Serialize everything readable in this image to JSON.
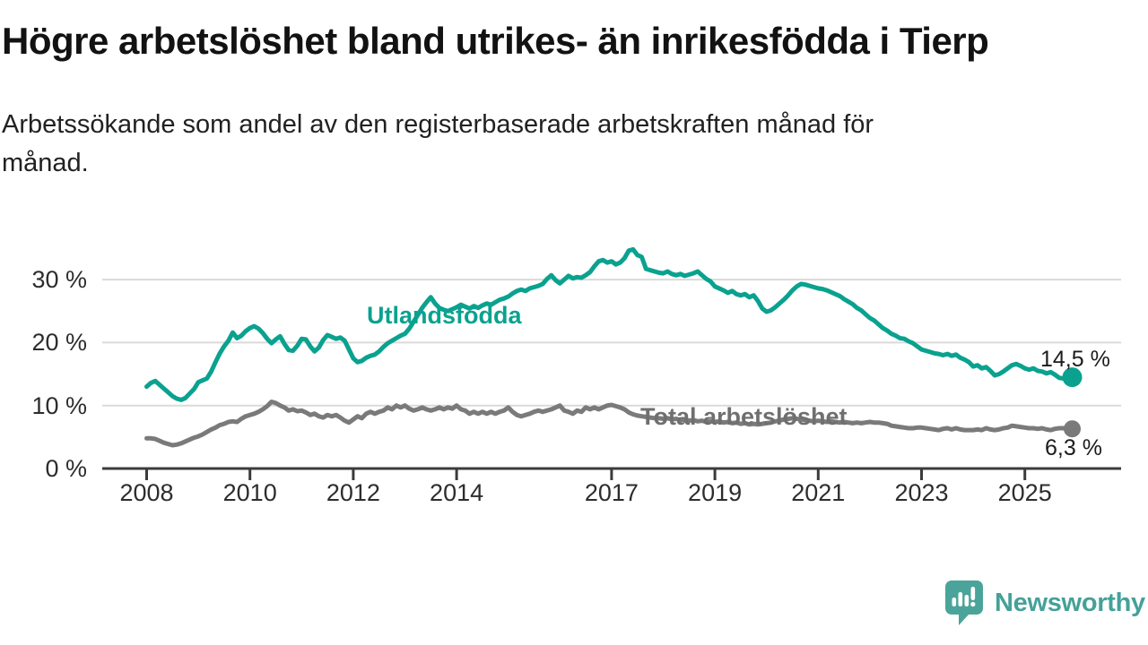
{
  "title": "Högre arbetslöshet bland utrikes- än inrikesfödda i Tierp",
  "subtitle": {
    "line1": "Arbetssökande som andel av den registerbaserade arbetskraften månad för",
    "line2": "månad."
  },
  "branding": {
    "name": "Newsworthy",
    "icon": "newsworthy-speech-bubble-chart-icon",
    "color": "#45a198"
  },
  "colors": {
    "foreign_born_line": "#0aa28f",
    "total_line": "#7a7a7a",
    "total_label": "#6f6f6f",
    "axis": "#3b3b3b",
    "gridline": "#dadada",
    "tick_text": "#2d2d2d"
  },
  "chart_data": {
    "type": "line",
    "x_start_year": 2008,
    "x_step_months": 1,
    "x_ticks": [
      2008,
      2010,
      2012,
      2014,
      2017,
      2019,
      2021,
      2023,
      2025
    ],
    "y_ticks": [
      {
        "value": 0,
        "label": "0 %"
      },
      {
        "value": 10,
        "label": "10 %"
      },
      {
        "value": 20,
        "label": "20 %"
      },
      {
        "value": 30,
        "label": "30 %"
      }
    ],
    "ylim": [
      0,
      36
    ],
    "grid": true,
    "series": [
      {
        "name": "Utlandsfödda",
        "color": "#0aa28f",
        "end_label": "14,5 %",
        "end_value": 14.5,
        "values": [
          13.0,
          13.6,
          13.9,
          13.3,
          12.7,
          12.1,
          11.5,
          11.1,
          10.9,
          11.2,
          11.9,
          12.6,
          13.7,
          14.0,
          14.3,
          15.4,
          16.9,
          18.3,
          19.4,
          20.3,
          21.6,
          20.7,
          21.1,
          21.8,
          22.3,
          22.6,
          22.2,
          21.5,
          20.6,
          19.9,
          20.5,
          21.0,
          19.8,
          18.8,
          18.7,
          19.5,
          20.6,
          20.5,
          19.4,
          18.6,
          19.2,
          20.4,
          21.2,
          20.9,
          20.6,
          20.8,
          20.3,
          18.9,
          17.5,
          16.9,
          17.1,
          17.6,
          17.9,
          18.1,
          18.6,
          19.3,
          19.9,
          20.3,
          20.7,
          21.1,
          21.4,
          22.2,
          23.3,
          24.4,
          25.5,
          26.4,
          27.2,
          26.2,
          25.5,
          25.2,
          25.0,
          25.3,
          25.6,
          26.0,
          25.7,
          25.4,
          25.8,
          25.5,
          25.9,
          26.2,
          26.0,
          26.4,
          26.8,
          27.0,
          27.3,
          27.8,
          28.2,
          28.4,
          28.2,
          28.6,
          28.8,
          29.0,
          29.3,
          30.1,
          30.7,
          29.9,
          29.4,
          30.0,
          30.6,
          30.2,
          30.4,
          30.3,
          30.7,
          31.2,
          32.1,
          32.9,
          33.1,
          32.7,
          32.9,
          32.4,
          32.7,
          33.4,
          34.6,
          34.8,
          33.9,
          33.6,
          31.7,
          31.5,
          31.3,
          31.1,
          31.0,
          31.3,
          30.9,
          30.7,
          30.9,
          30.6,
          30.8,
          31.0,
          31.3,
          30.7,
          30.1,
          29.7,
          28.9,
          28.6,
          28.3,
          27.9,
          28.2,
          27.7,
          27.5,
          27.7,
          27.2,
          27.5,
          26.6,
          25.4,
          24.9,
          25.1,
          25.6,
          26.2,
          26.8,
          27.5,
          28.3,
          28.9,
          29.3,
          29.2,
          29.0,
          28.8,
          28.6,
          28.5,
          28.3,
          28.0,
          27.7,
          27.4,
          26.9,
          26.5,
          26.1,
          25.5,
          25.1,
          24.5,
          23.9,
          23.5,
          22.9,
          22.3,
          21.9,
          21.4,
          21.1,
          20.7,
          20.6,
          20.2,
          19.9,
          19.4,
          18.9,
          18.7,
          18.5,
          18.3,
          18.2,
          18.0,
          18.2,
          17.9,
          18.1,
          17.6,
          17.3,
          16.9,
          16.2,
          16.4,
          15.9,
          16.1,
          15.5,
          14.8,
          15.0,
          15.4,
          15.9,
          16.4,
          16.6,
          16.3,
          15.9,
          15.7,
          15.9,
          15.5,
          15.4,
          15.1,
          15.3,
          14.9,
          14.4,
          14.3,
          14.3,
          14.5
        ]
      },
      {
        "name": "Total arbetslöshet",
        "color": "#7a7a7a",
        "end_label": "6,3 %",
        "end_value": 6.3,
        "values": [
          4.8,
          4.8,
          4.7,
          4.4,
          4.1,
          3.9,
          3.7,
          3.8,
          4.0,
          4.3,
          4.6,
          4.9,
          5.1,
          5.4,
          5.8,
          6.2,
          6.5,
          6.9,
          7.1,
          7.4,
          7.5,
          7.4,
          7.9,
          8.3,
          8.5,
          8.7,
          9.0,
          9.4,
          9.9,
          10.6,
          10.4,
          10.0,
          9.7,
          9.2,
          9.4,
          9.1,
          9.2,
          8.9,
          8.5,
          8.7,
          8.3,
          8.1,
          8.5,
          8.3,
          8.5,
          8.1,
          7.6,
          7.3,
          7.8,
          8.3,
          8.0,
          8.7,
          9.0,
          8.7,
          9.0,
          9.2,
          9.7,
          9.4,
          10.0,
          9.7,
          10.0,
          9.5,
          9.2,
          9.4,
          9.7,
          9.4,
          9.2,
          9.4,
          9.7,
          9.4,
          9.7,
          9.5,
          10.0,
          9.4,
          9.2,
          8.7,
          9.0,
          8.7,
          9.0,
          8.7,
          9.0,
          8.7,
          9.0,
          9.2,
          9.7,
          9.0,
          8.5,
          8.3,
          8.5,
          8.7,
          9.0,
          9.2,
          9.0,
          9.2,
          9.4,
          9.7,
          10.0,
          9.2,
          9.0,
          8.7,
          9.2,
          9.0,
          9.7,
          9.4,
          9.7,
          9.4,
          9.7,
          10.0,
          10.1,
          9.9,
          9.7,
          9.4,
          8.9,
          8.6,
          8.4,
          8.3,
          8.2,
          8.1,
          8.0,
          8.0,
          7.9,
          8.0,
          7.8,
          7.9,
          7.7,
          7.8,
          7.6,
          7.7,
          7.5,
          7.6,
          7.4,
          7.5,
          7.4,
          7.5,
          7.3,
          7.4,
          7.2,
          7.3,
          7.1,
          7.2,
          7.0,
          7.1,
          7.0,
          7.1,
          7.2,
          7.3,
          7.5,
          7.6,
          7.8,
          7.9,
          8.0,
          7.9,
          7.8,
          7.7,
          7.6,
          7.5,
          7.6,
          7.5,
          7.4,
          7.5,
          7.4,
          7.3,
          7.4,
          7.3,
          7.2,
          7.3,
          7.2,
          7.3,
          7.4,
          7.3,
          7.3,
          7.2,
          7.1,
          6.8,
          6.7,
          6.6,
          6.5,
          6.4,
          6.4,
          6.5,
          6.5,
          6.4,
          6.3,
          6.2,
          6.1,
          6.3,
          6.4,
          6.2,
          6.4,
          6.2,
          6.1,
          6.1,
          6.1,
          6.2,
          6.1,
          6.4,
          6.2,
          6.1,
          6.2,
          6.4,
          6.5,
          6.8,
          6.7,
          6.6,
          6.5,
          6.4,
          6.4,
          6.3,
          6.4,
          6.2,
          6.1,
          6.3,
          6.4,
          6.4,
          6.2,
          6.3
        ]
      }
    ]
  }
}
